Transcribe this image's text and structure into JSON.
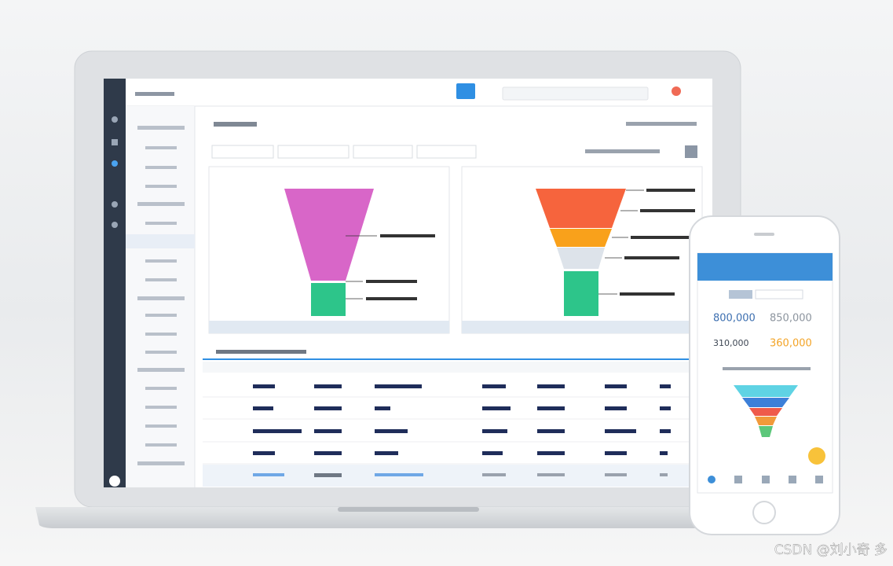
{
  "phone": {
    "stats": [
      "800,000",
      "850,000",
      "310,000",
      "360,000"
    ]
  },
  "watermark": "CSDN @刘小奇 多"
}
